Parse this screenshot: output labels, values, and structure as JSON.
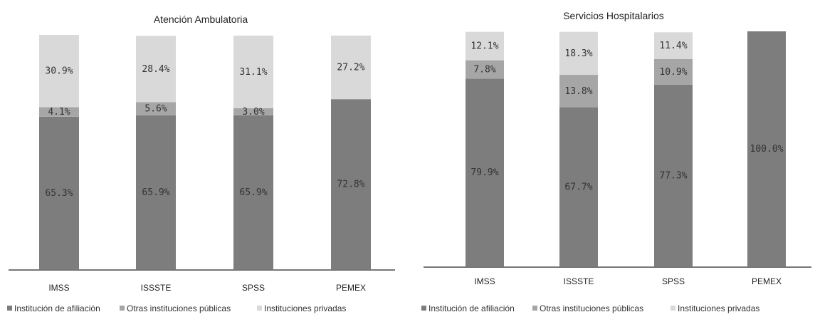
{
  "chart_data": [
    {
      "type": "bar",
      "stacked": true,
      "normalized": true,
      "title": "Atención Ambulatoria",
      "categories": [
        "IMSS",
        "ISSSTE",
        "SPSS",
        "PEMEX"
      ],
      "series": [
        {
          "name": "Institución de afiliación",
          "values": [
            65.3,
            65.9,
            65.9,
            72.8
          ],
          "labels": [
            "65.3%",
            "65.9%",
            "65.9%",
            "72.8%"
          ],
          "color": "#7d7d7d"
        },
        {
          "name": "Otras instituciones públicas",
          "values": [
            4.1,
            5.6,
            3.0,
            0
          ],
          "labels": [
            "4.1%",
            "5.6%",
            "3.0%",
            ""
          ],
          "color": "#a6a6a6"
        },
        {
          "name": "Instituciones privadas",
          "values": [
            30.9,
            28.4,
            31.1,
            27.2
          ],
          "labels": [
            "30.9%",
            "28.4%",
            "31.1%",
            "27.2%"
          ],
          "color": "#d9d9d9"
        }
      ],
      "ylim": [
        0,
        100
      ],
      "grid": false,
      "legend_position": "bottom"
    },
    {
      "type": "bar",
      "stacked": true,
      "normalized": true,
      "title": "Servicios Hospitalarios",
      "categories": [
        "IMSS",
        "ISSSTE",
        "SPSS",
        "PEMEX"
      ],
      "series": [
        {
          "name": "Institución de afiliación",
          "values": [
            79.9,
            67.7,
            77.3,
            100.0
          ],
          "labels": [
            "79.9%",
            "67.7%",
            "77.3%",
            "100.0%"
          ],
          "color": "#7d7d7d"
        },
        {
          "name": "Otras instituciones públicas",
          "values": [
            7.8,
            13.8,
            10.9,
            0
          ],
          "labels": [
            "7.8%",
            "13.8%",
            "10.9%",
            ""
          ],
          "color": "#a6a6a6"
        },
        {
          "name": "Instituciones privadas",
          "values": [
            12.1,
            18.3,
            11.4,
            0
          ],
          "labels": [
            "12.1%",
            "18.3%",
            "11.4%",
            ""
          ],
          "color": "#d9d9d9"
        }
      ],
      "ylim": [
        0,
        100
      ],
      "grid": false,
      "legend_position": "bottom"
    }
  ]
}
